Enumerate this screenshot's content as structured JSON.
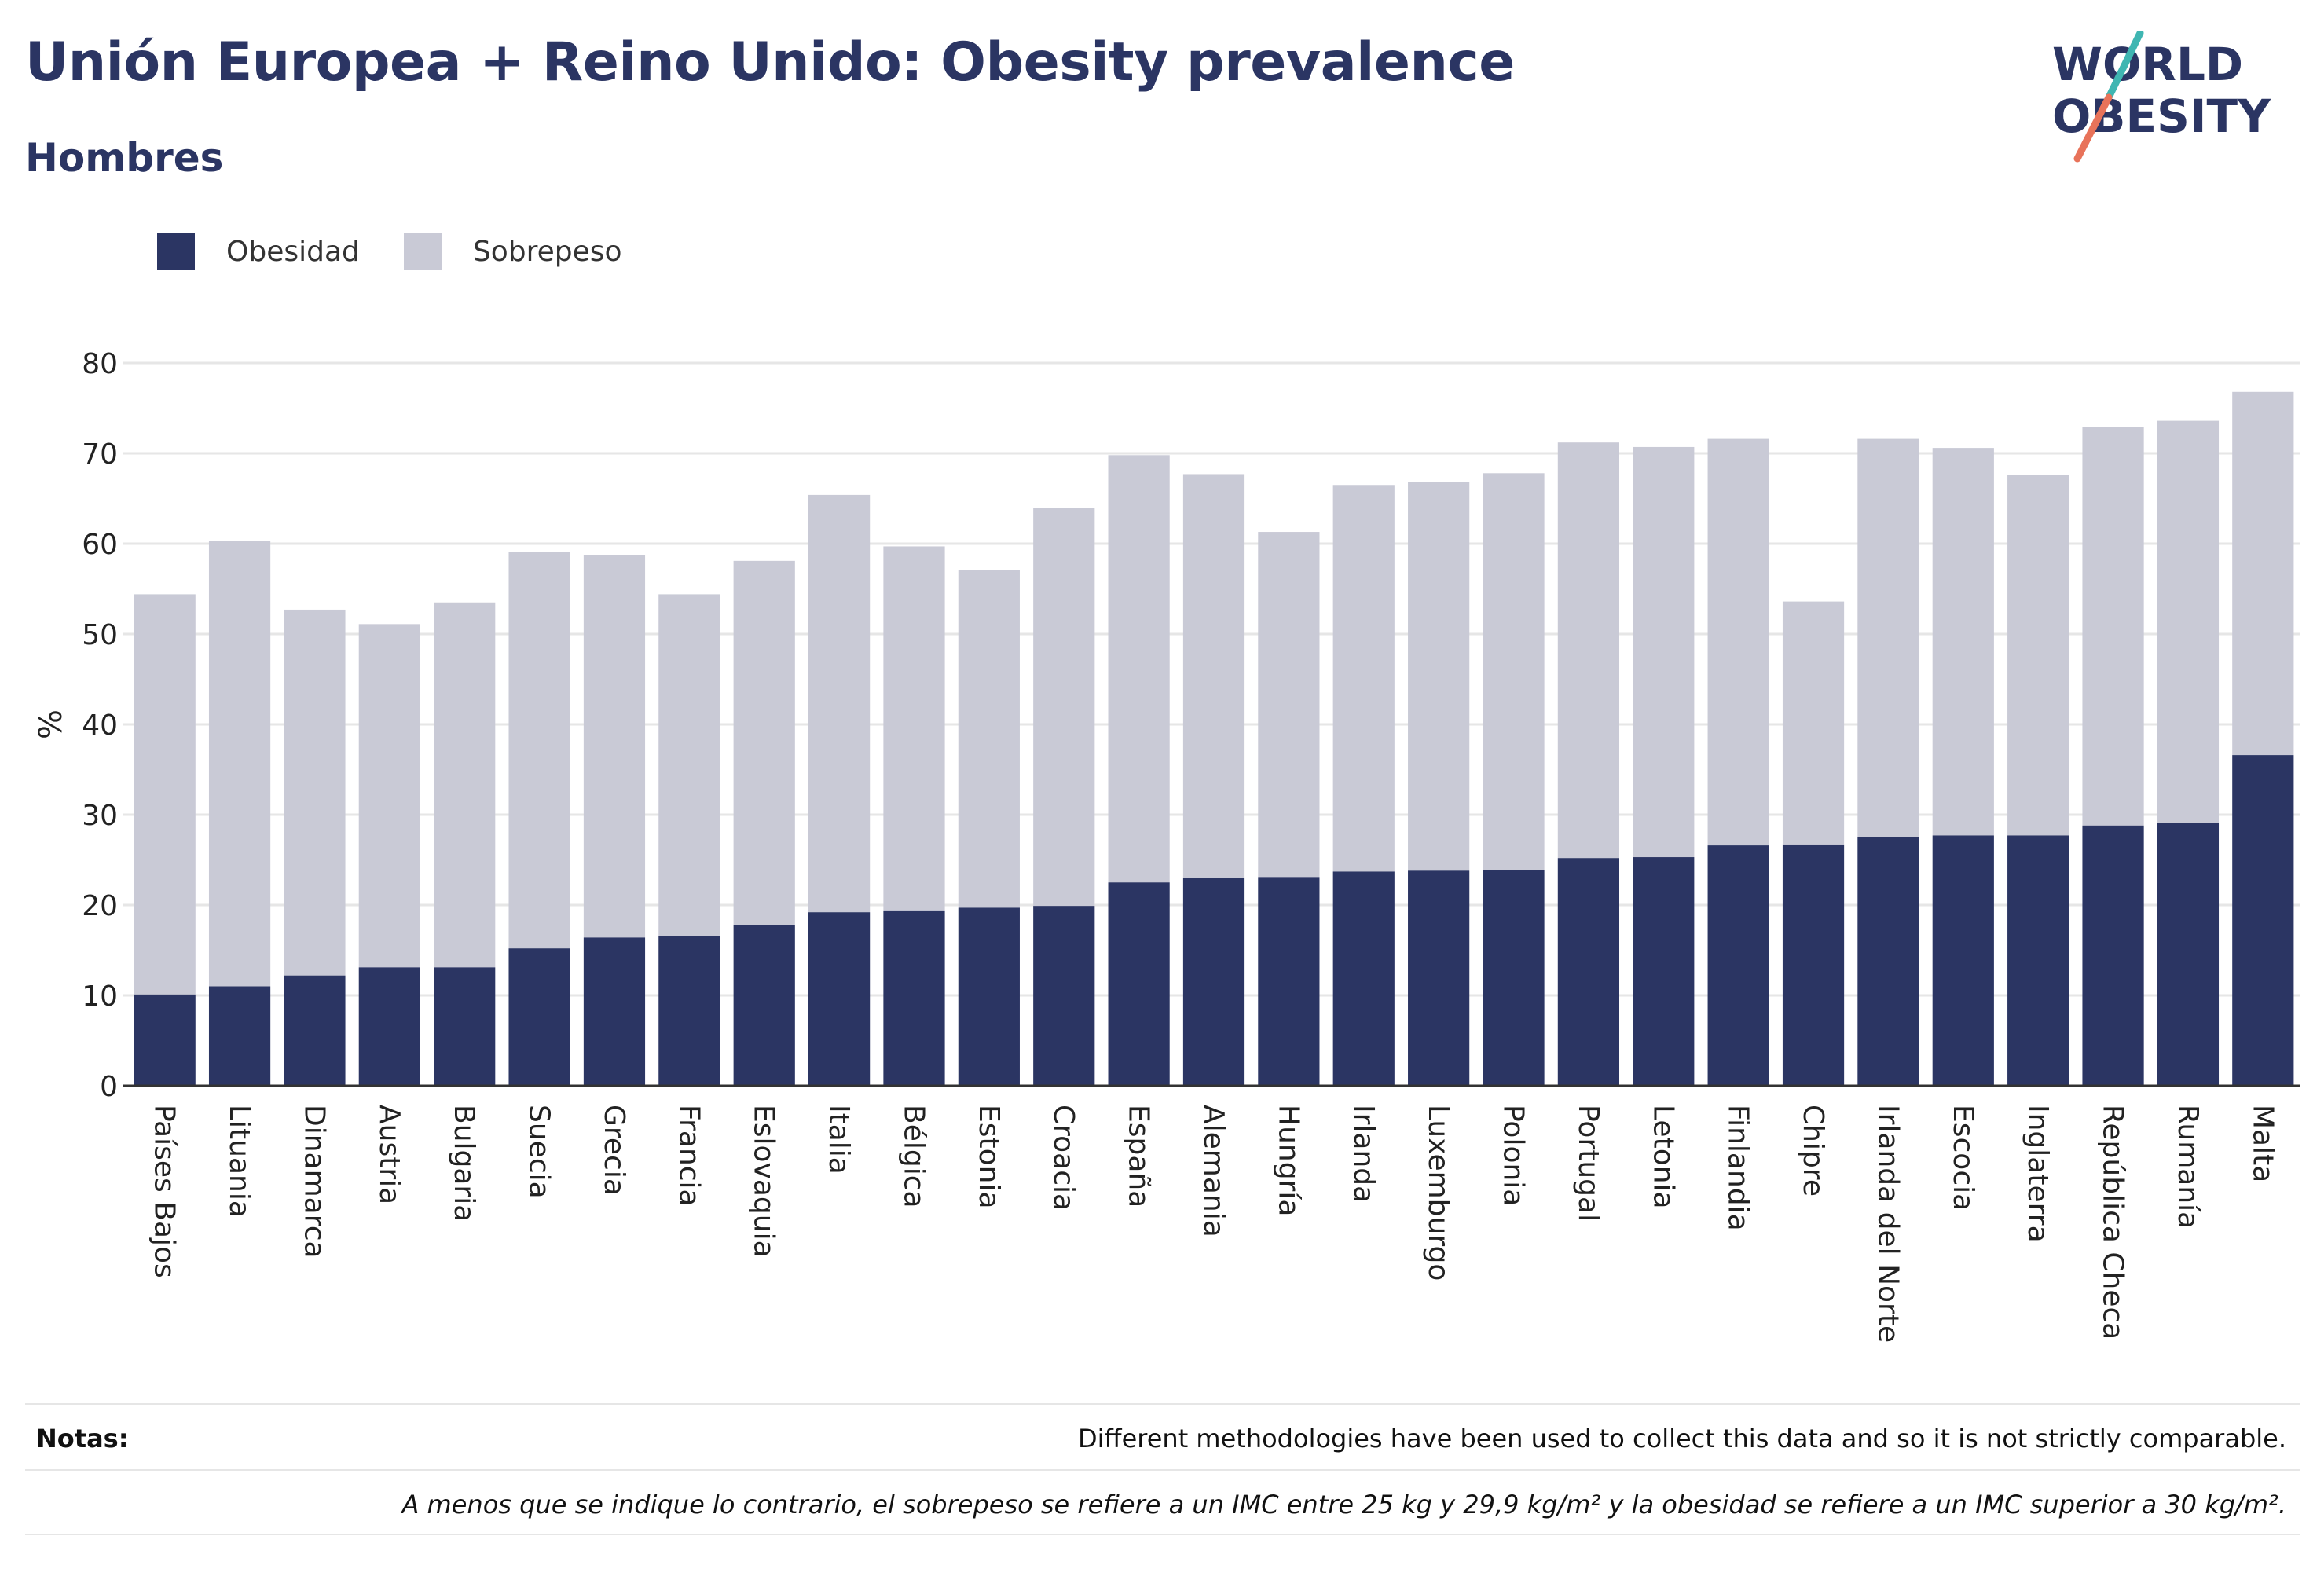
{
  "header": {
    "title": "Unión Europea + Reino Unido: Obesity prevalence",
    "subtitle": "Hombres"
  },
  "logo": {
    "line1": "WORLD",
    "line2": "OBESITY"
  },
  "legend": {
    "items": [
      {
        "label": "Obesidad",
        "color": "#2b3563"
      },
      {
        "label": "Sobrepeso",
        "color": "#c9cad6"
      }
    ]
  },
  "colors": {
    "obesity": "#2b3563",
    "overweight": "#c9cad6",
    "grid": "#e6e6e6",
    "logo_slash_teal": "#3fb6b2",
    "logo_slash_coral": "#e8735a"
  },
  "chart_data": {
    "type": "bar",
    "stacked": true,
    "ylabel": "%",
    "ylim": [
      0,
      80
    ],
    "yticks": [
      0,
      10,
      20,
      30,
      40,
      50,
      60,
      70,
      80
    ],
    "grid": true,
    "legend_position": "top-left",
    "categories": [
      "Países Bajos",
      "Lituania",
      "Dinamarca",
      "Austria",
      "Bulgaria",
      "Suecia",
      "Grecia",
      "Francia",
      "Eslovaquia",
      "Italia",
      "Bélgica",
      "Estonia",
      "Croacia",
      "España",
      "Alemania",
      "Hungría",
      "Irlanda",
      "Luxemburgo",
      "Polonia",
      "Portugal",
      "Letonia",
      "Finlandia",
      "Chipre",
      "Irlanda del Norte",
      "Escocia",
      "Inglaterra",
      "República Checa",
      "Rumanía",
      "Malta"
    ],
    "series": [
      {
        "name": "Obesidad",
        "values": [
          10.1,
          11.0,
          12.2,
          13.1,
          13.1,
          15.2,
          16.4,
          16.6,
          17.8,
          19.2,
          19.4,
          19.7,
          19.9,
          22.5,
          23.0,
          23.1,
          23.7,
          23.8,
          23.9,
          25.2,
          25.3,
          26.6,
          26.7,
          27.5,
          27.7,
          27.7,
          28.8,
          29.1,
          36.6
        ]
      },
      {
        "name": "Sobrepeso",
        "values": [
          44.3,
          49.3,
          40.5,
          38.0,
          40.4,
          43.9,
          42.3,
          37.8,
          40.3,
          46.2,
          40.3,
          37.4,
          44.1,
          47.3,
          44.7,
          38.2,
          42.8,
          43.0,
          43.9,
          46.0,
          45.4,
          45.0,
          26.9,
          44.1,
          42.9,
          39.9,
          44.1,
          44.5,
          40.2
        ]
      }
    ]
  },
  "notes": {
    "label": "Notas:",
    "line1": "Different methodologies have been used to collect this data and so it is not strictly comparable.",
    "line2": "A menos que se indique lo contrario, el sobrepeso se refiere a un IMC entre 25 kg y 29,9 kg/m² y la obesidad se refiere a un IMC superior a 30 kg/m²."
  }
}
